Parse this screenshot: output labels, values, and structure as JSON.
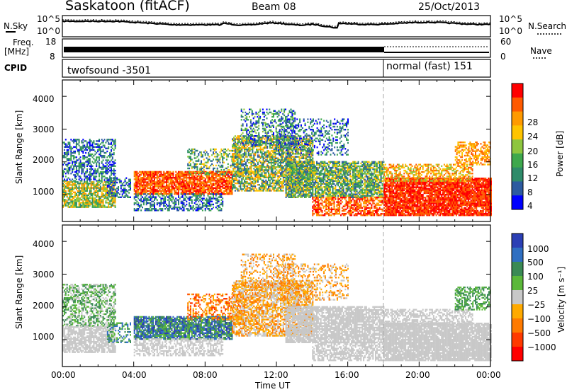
{
  "header": {
    "station": "Saskatoon (fitACF)",
    "beam": "Beam 08",
    "date": "25/Oct/2013"
  },
  "top_panels": {
    "nsky_label": "N.Sky",
    "nsky_ticks": [
      "10^5",
      "10^0"
    ],
    "nsearch_label": "N.Search",
    "nsearch_ticks": [
      "10^5",
      "10^0"
    ],
    "freq_label_1": "Freq.",
    "freq_label_2": "[MHz]",
    "freq_ticks": [
      "18",
      "8"
    ],
    "nave_label": "Nave",
    "nave_ticks": [
      "60",
      "0"
    ],
    "cpid_label": "CPID",
    "cpid_segments": [
      "twofsound -3501",
      "normal (fast) 151"
    ]
  },
  "chart_data": [
    {
      "type": "heatmap",
      "title": "",
      "ylabel": "Slant Range [km]",
      "xlabel": "",
      "ylim": [
        180,
        4500
      ],
      "yticks": [
        "1000",
        "2000",
        "3000",
        "4000"
      ],
      "colorbar_label": "Power [dB]",
      "colorbar_ticks": [
        "28",
        "24",
        "20",
        "16",
        "12",
        "8",
        "4"
      ],
      "colorbar_colors": [
        "#ff0000",
        "#ff5a00",
        "#ff9a00",
        "#ffc400",
        "#8ec63f",
        "#3ea84d",
        "#2e8b6a",
        "#2c5aa0",
        "#0000ff"
      ]
    },
    {
      "type": "heatmap",
      "title": "",
      "ylabel": "Slant Range [km]",
      "xlabel": "Time UT",
      "ylim": [
        180,
        4500
      ],
      "yticks": [
        "1000",
        "2000",
        "3000",
        "4000"
      ],
      "xticks": [
        "00:00",
        "04:00",
        "08:00",
        "12:00",
        "16:00",
        "20:00",
        "00:00"
      ],
      "colorbar_label": "Velocity [m s⁻¹]",
      "colorbar_ticks": [
        "1000",
        "500",
        "100",
        "25",
        "−25",
        "−100",
        "−500",
        "−1000"
      ],
      "colorbar_colors": [
        "#2b3fb5",
        "#2f6fc2",
        "#3a8a55",
        "#5bb83a",
        "#c8c8c8",
        "#ffaa00",
        "#ff7a00",
        "#ff3a00",
        "#ff0000"
      ]
    }
  ]
}
